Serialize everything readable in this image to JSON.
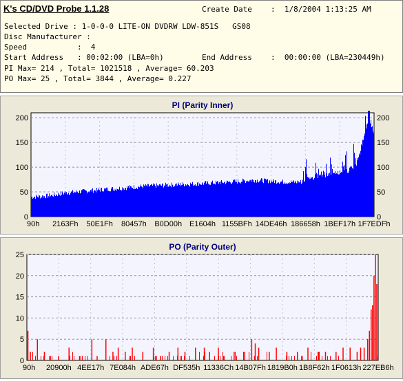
{
  "header": {
    "app_title": "K's CD/DVD Probe 1.1.28",
    "create_date_label": "Create Date",
    "create_date_value": ":  1/8/2004 1:13:25 AM",
    "selected_drive": "Selected Drive : 1-0-0-0 LITE-ON DVDRW LDW-851S   GS08",
    "disc_manufacturer": "Disc Manufacturer :",
    "speed": "Speed           :  4",
    "start_address": "Start Address   : 00:02:00 (LBA=0h)",
    "end_address_label": "End Address",
    "end_address_value": ":  00:00:00 (LBA=230449h)",
    "pi_summary": "PI Max= 214 , Total= 1021518 , Average= 60.203",
    "po_summary": "PO Max= 25 , Total= 3844 , Average= 0.227"
  },
  "colors": {
    "pi_bars": "#0000ff",
    "po_bars": "#ff0000",
    "title_text": "#000080",
    "plot_bg": "#f4f4ff",
    "panel_bg": "#ece9d8"
  },
  "chart_data": [
    {
      "type": "bar",
      "title": "PI (Parity Inner)",
      "ylim": [
        0,
        210
      ],
      "yticks": [
        0,
        50,
        100,
        150,
        200
      ],
      "xticks": [
        "90h",
        "2163Fh",
        "50E1Fh",
        "80457h",
        "B0D00h",
        "E1604h",
        "1155BFh",
        "14DE46h",
        "186658h",
        "1BEF17h",
        "1F7EDFh"
      ],
      "grid": true,
      "profile": [
        {
          "x": 0.0,
          "y": 40
        },
        {
          "x": 0.05,
          "y": 42
        },
        {
          "x": 0.1,
          "y": 48
        },
        {
          "x": 0.2,
          "y": 54
        },
        {
          "x": 0.3,
          "y": 60
        },
        {
          "x": 0.4,
          "y": 64
        },
        {
          "x": 0.5,
          "y": 67
        },
        {
          "x": 0.6,
          "y": 71
        },
        {
          "x": 0.65,
          "y": 74
        },
        {
          "x": 0.7,
          "y": 72
        },
        {
          "x": 0.75,
          "y": 70
        },
        {
          "x": 0.79,
          "y": 70
        },
        {
          "x": 0.8,
          "y": 84
        },
        {
          "x": 0.85,
          "y": 90
        },
        {
          "x": 0.9,
          "y": 96
        },
        {
          "x": 0.93,
          "y": 100
        },
        {
          "x": 0.95,
          "y": 112
        },
        {
          "x": 0.97,
          "y": 160
        },
        {
          "x": 0.985,
          "y": 205
        },
        {
          "x": 1.0,
          "y": 178
        }
      ],
      "max": 214,
      "peak_position": 0.985
    },
    {
      "type": "bar",
      "title": "PO (Parity Outer)",
      "ylim": [
        0,
        25
      ],
      "yticks": [
        0,
        5,
        10,
        15,
        20,
        25
      ],
      "xticks": [
        "90h",
        "20900h",
        "4EE17h",
        "7E084h",
        "ADE67h",
        "DF535h",
        "11336Ch",
        "14B07Fh",
        "1819B0h",
        "1B8F62h",
        "1F0613h",
        "227EB6h"
      ],
      "grid": true,
      "spikes": [
        {
          "x": 0.003,
          "y": 7
        },
        {
          "x": 0.01,
          "y": 2
        },
        {
          "x": 0.03,
          "y": 5
        },
        {
          "x": 0.05,
          "y": 2
        },
        {
          "x": 0.09,
          "y": 1
        },
        {
          "x": 0.12,
          "y": 3
        },
        {
          "x": 0.15,
          "y": 1
        },
        {
          "x": 0.185,
          "y": 5
        },
        {
          "x": 0.2,
          "y": 1
        },
        {
          "x": 0.225,
          "y": 5
        },
        {
          "x": 0.245,
          "y": 2
        },
        {
          "x": 0.26,
          "y": 3
        },
        {
          "x": 0.28,
          "y": 2
        },
        {
          "x": 0.3,
          "y": 3
        },
        {
          "x": 0.33,
          "y": 2
        },
        {
          "x": 0.36,
          "y": 3
        },
        {
          "x": 0.38,
          "y": 1
        },
        {
          "x": 0.405,
          "y": 2
        },
        {
          "x": 0.43,
          "y": 3
        },
        {
          "x": 0.45,
          "y": 2
        },
        {
          "x": 0.48,
          "y": 3
        },
        {
          "x": 0.505,
          "y": 3
        },
        {
          "x": 0.52,
          "y": 2
        },
        {
          "x": 0.545,
          "y": 3
        },
        {
          "x": 0.56,
          "y": 1
        },
        {
          "x": 0.59,
          "y": 2
        },
        {
          "x": 0.62,
          "y": 2
        },
        {
          "x": 0.64,
          "y": 5
        },
        {
          "x": 0.65,
          "y": 4
        },
        {
          "x": 0.66,
          "y": 3
        },
        {
          "x": 0.69,
          "y": 2
        },
        {
          "x": 0.71,
          "y": 3
        },
        {
          "x": 0.74,
          "y": 2
        },
        {
          "x": 0.77,
          "y": 2
        },
        {
          "x": 0.8,
          "y": 3
        },
        {
          "x": 0.83,
          "y": 2
        },
        {
          "x": 0.85,
          "y": 2
        },
        {
          "x": 0.88,
          "y": 2
        },
        {
          "x": 0.9,
          "y": 3
        },
        {
          "x": 0.92,
          "y": 3
        },
        {
          "x": 0.94,
          "y": 2
        },
        {
          "x": 0.95,
          "y": 3
        },
        {
          "x": 0.96,
          "y": 3
        },
        {
          "x": 0.97,
          "y": 5
        },
        {
          "x": 0.975,
          "y": 7
        },
        {
          "x": 0.98,
          "y": 12
        },
        {
          "x": 0.984,
          "y": 13
        },
        {
          "x": 0.988,
          "y": 20
        },
        {
          "x": 0.992,
          "y": 25
        },
        {
          "x": 0.996,
          "y": 18
        }
      ]
    }
  ]
}
